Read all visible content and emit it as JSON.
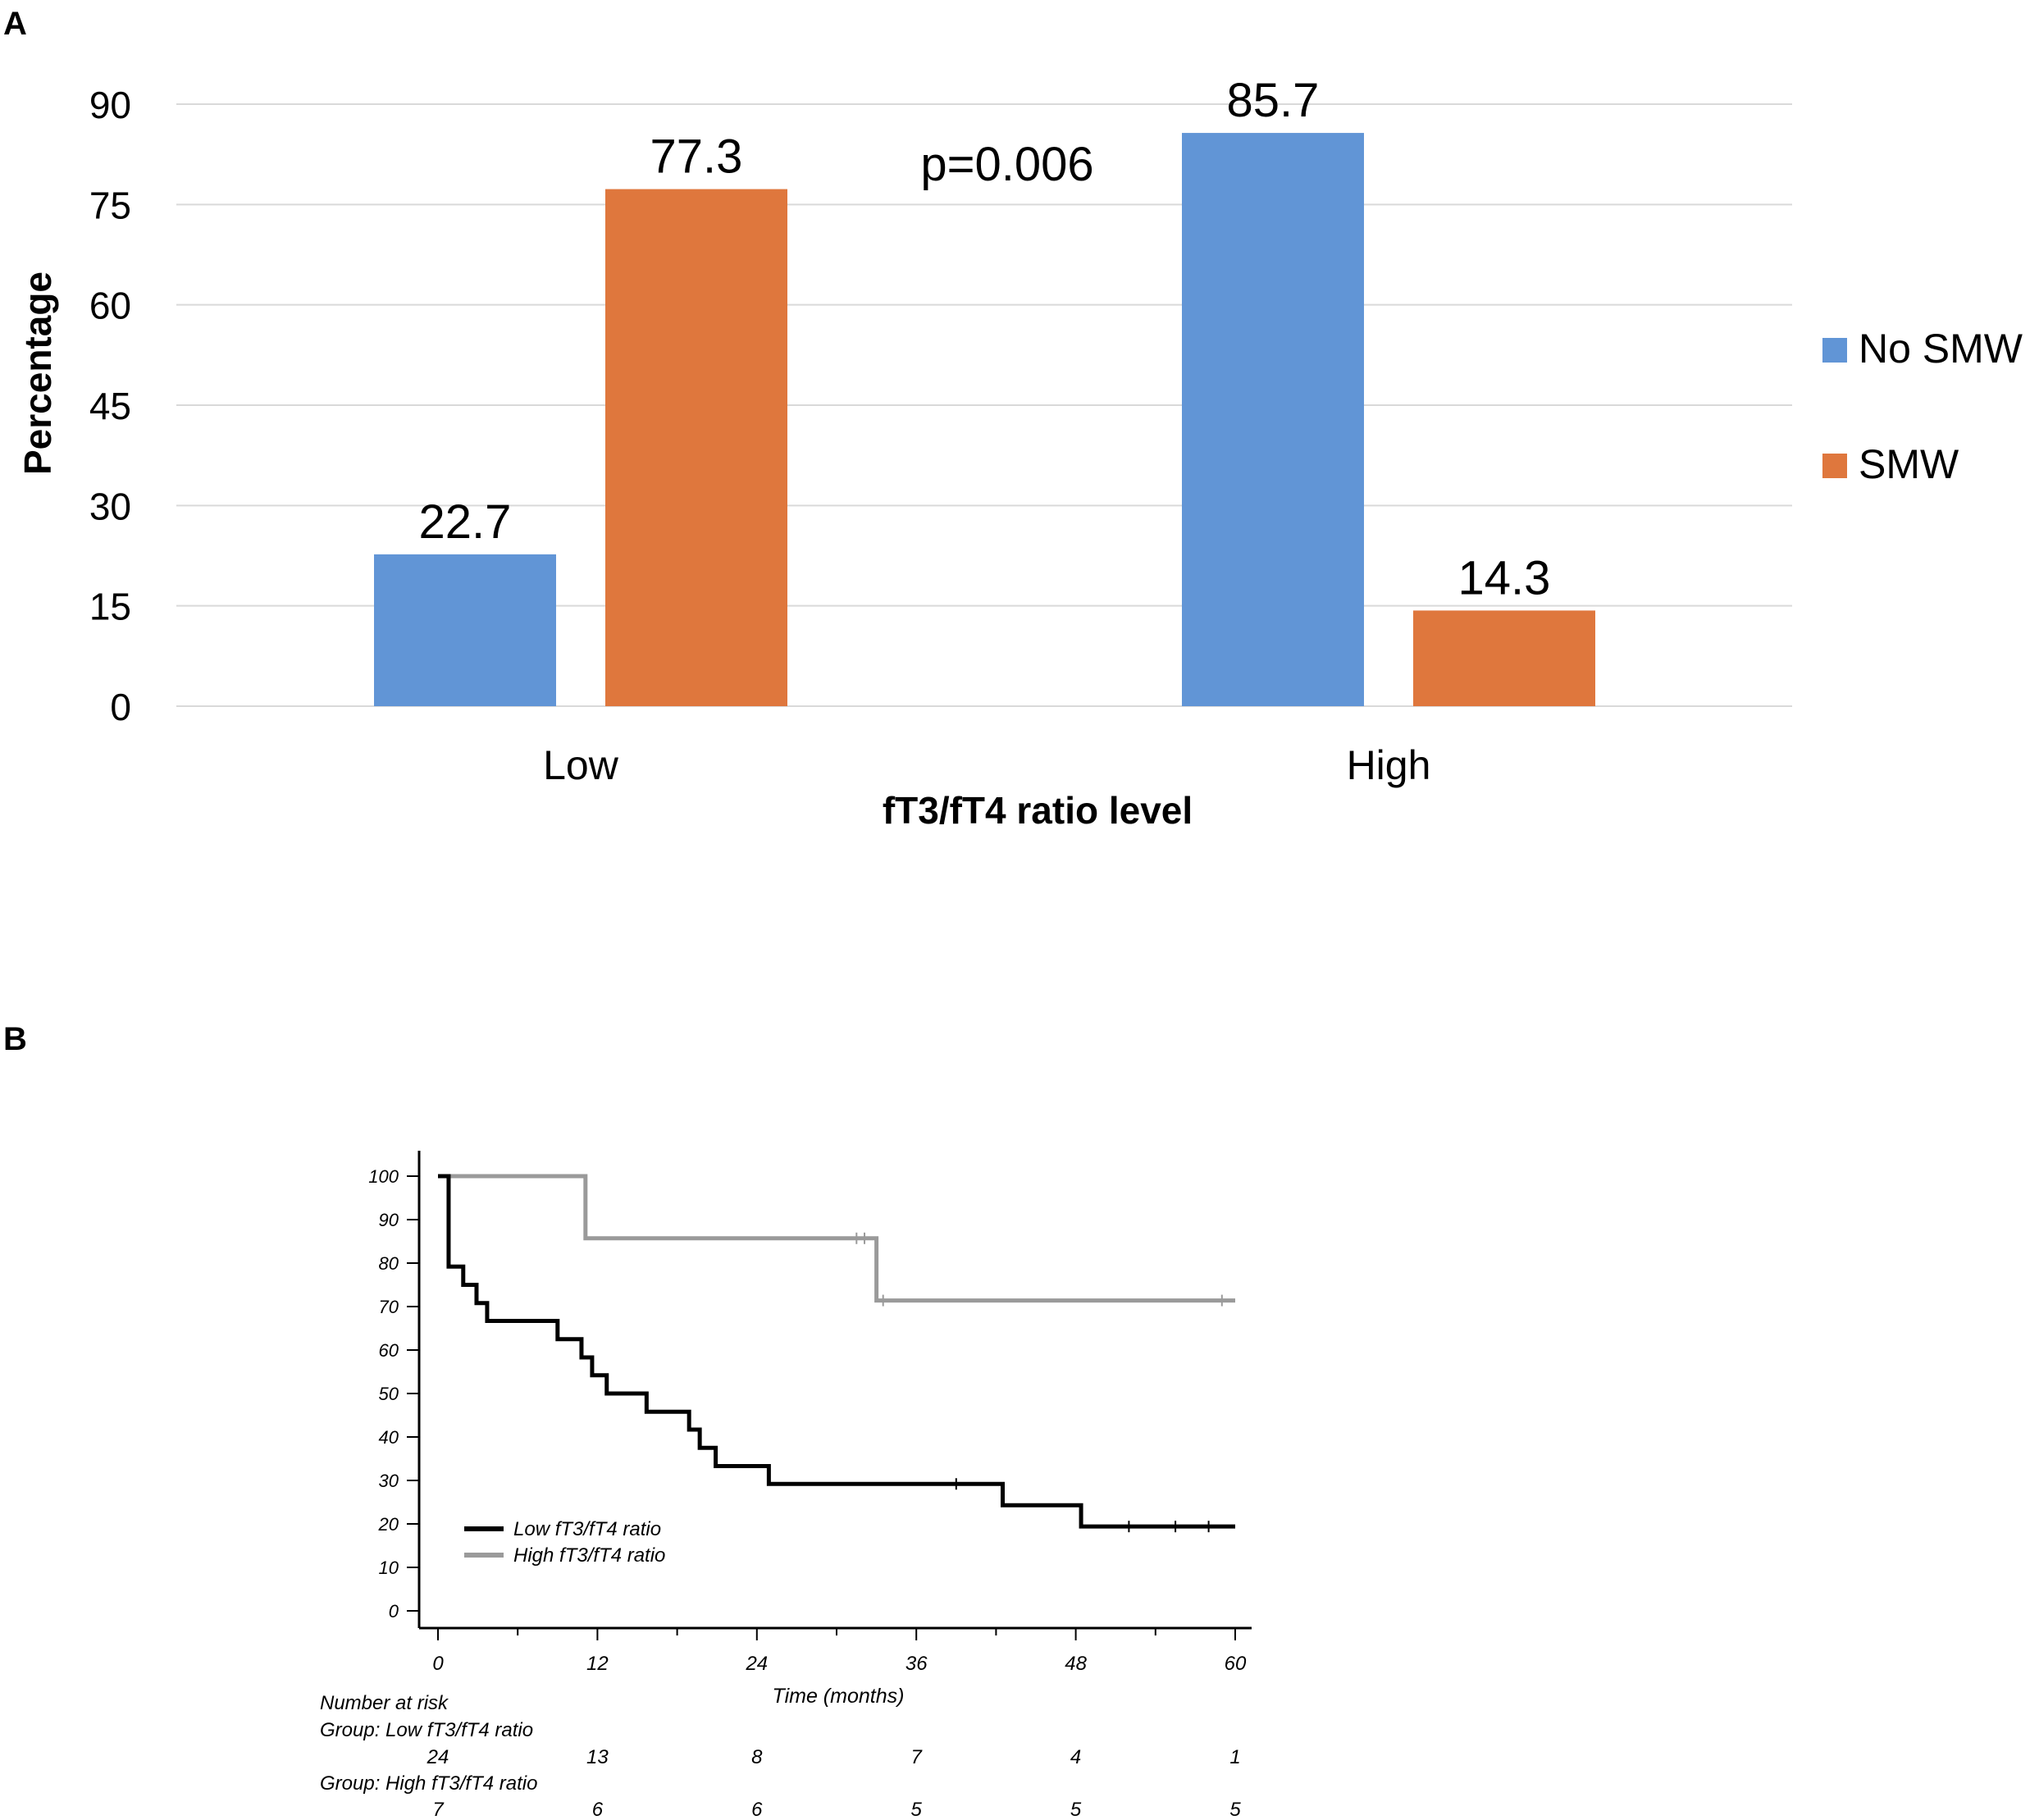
{
  "panels": [
    {
      "label": "A"
    },
    {
      "label": "B"
    }
  ],
  "colors": {
    "no_smw": "#6195d6",
    "smw": "#df773d",
    "low_curve": "#000000",
    "high_curve": "#9a9a9a",
    "grid": "#d9d9d9"
  },
  "chart_data": [
    {
      "type": "bar",
      "panel": "A",
      "categories": [
        "Low",
        "High"
      ],
      "series": [
        {
          "name": "No SMW",
          "values": [
            22.7,
            85.7
          ]
        },
        {
          "name": "SMW",
          "values": [
            77.3,
            14.3
          ]
        }
      ],
      "value_labels": [
        [
          "22.7",
          "85.7"
        ],
        [
          "77.3",
          "14.3"
        ]
      ],
      "ylabel": "Percentage",
      "xlabel": "fT3/fT4 ratio level",
      "ylim": [
        0,
        90
      ],
      "yticks": [
        0,
        15,
        30,
        45,
        60,
        75,
        90
      ],
      "annotation": "p=0.006",
      "legend_position": "right"
    },
    {
      "type": "line",
      "subtype": "kaplan-meier",
      "panel": "B",
      "xlabel": "Time (months)",
      "xlim": [
        0,
        60
      ],
      "xticks": [
        0,
        12,
        24,
        36,
        48,
        60
      ],
      "ylim": [
        0,
        100
      ],
      "yticks": [
        0,
        10,
        20,
        30,
        40,
        50,
        60,
        70,
        80,
        90,
        100
      ],
      "legend_position": "bottom-left",
      "series": [
        {
          "name": "Low fT3/fT4 ratio",
          "steps": [
            [
              0,
              100
            ],
            [
              0.8,
              79.2
            ],
            [
              1.9,
              75
            ],
            [
              2.9,
              70.8
            ],
            [
              3.7,
              66.7
            ],
            [
              9.0,
              62.5
            ],
            [
              10.8,
              58.3
            ],
            [
              11.6,
              54.2
            ],
            [
              12.7,
              50
            ],
            [
              15.7,
              45.8
            ],
            [
              18.9,
              41.7
            ],
            [
              19.7,
              37.5
            ],
            [
              20.9,
              33.3
            ],
            [
              24.9,
              29.2
            ],
            [
              42.5,
              24.3
            ],
            [
              48.4,
              19.4
            ],
            [
              60,
              19.4
            ]
          ],
          "censor_times": [
            39,
            52,
            55.5,
            58
          ]
        },
        {
          "name": "High fT3/fT4 ratio",
          "steps": [
            [
              0,
              100
            ],
            [
              11.1,
              85.7
            ],
            [
              33,
              71.4
            ],
            [
              60,
              71.4
            ]
          ],
          "censor_times": [
            31.5,
            32.1,
            33.5,
            59
          ]
        }
      ],
      "risk_table": {
        "title": "Number at risk",
        "groups": [
          {
            "label": "Group: Low fT3/fT4 ratio",
            "counts": [
              "24",
              "13",
              "8",
              "7",
              "4",
              "1"
            ]
          },
          {
            "label": "Group: High fT3/fT4 ratio",
            "counts": [
              "7",
              "6",
              "6",
              "5",
              "5",
              "5"
            ]
          }
        ]
      }
    }
  ]
}
